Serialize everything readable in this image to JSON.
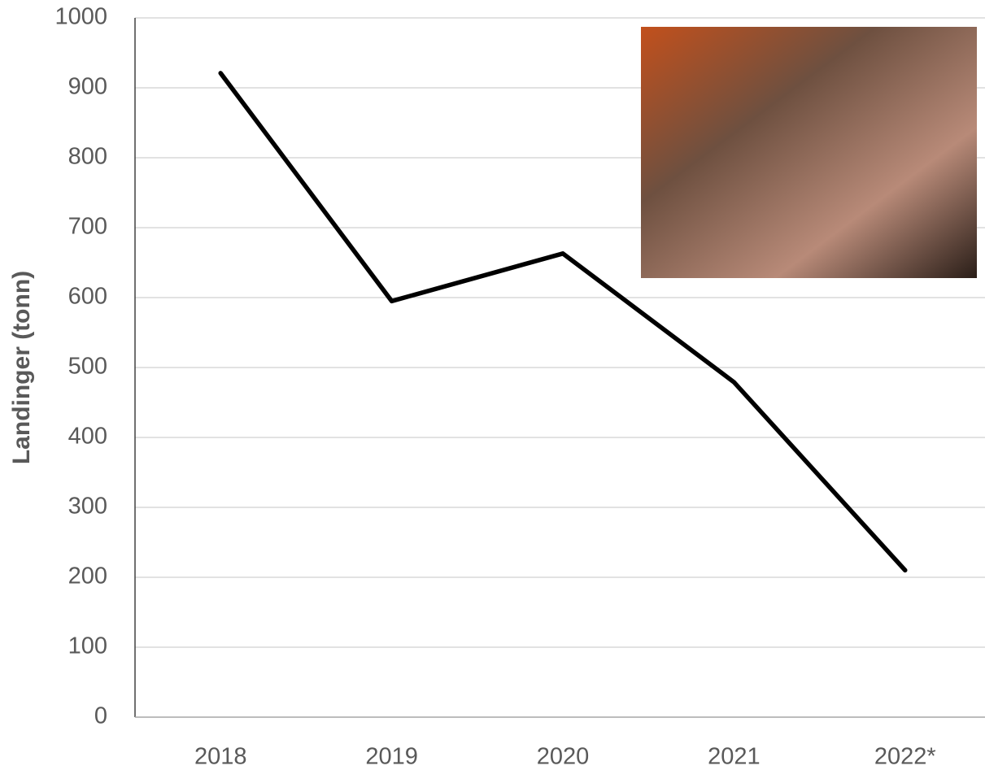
{
  "chart_data": {
    "type": "line",
    "ylabel": "Landinger  (tonn)",
    "categories": [
      "2018",
      "2019",
      "2020",
      "2021",
      "2022*"
    ],
    "values": [
      921,
      595,
      663,
      479,
      210
    ],
    "color": "#000000",
    "ylim": [
      0,
      1000
    ],
    "yticks": [
      0,
      100,
      200,
      300,
      400,
      500,
      600,
      700,
      800,
      900,
      1000
    ],
    "grid": true
  }
}
